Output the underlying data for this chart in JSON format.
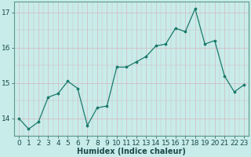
{
  "x": [
    0,
    1,
    2,
    3,
    4,
    5,
    6,
    7,
    8,
    9,
    10,
    11,
    12,
    13,
    14,
    15,
    16,
    17,
    18,
    19,
    20,
    21,
    22,
    23
  ],
  "y": [
    14.0,
    13.7,
    13.9,
    14.6,
    14.7,
    15.05,
    14.85,
    13.8,
    14.3,
    14.35,
    15.45,
    15.45,
    15.6,
    15.75,
    16.05,
    16.1,
    16.55,
    16.45,
    17.1,
    16.1,
    16.2,
    15.2,
    14.75,
    14.95
  ],
  "line_color": "#1a7a6a",
  "marker_color": "#1a7a6a",
  "bg_color": "#c8ecea",
  "grid_color_major": "#b8d4d2",
  "grid_color_minor": "#d8eeec",
  "xlabel": "Humidex (Indice chaleur)",
  "ylim": [
    13.5,
    17.3
  ],
  "yticks": [
    14,
    15,
    16,
    17
  ],
  "xticks": [
    0,
    1,
    2,
    3,
    4,
    5,
    6,
    7,
    8,
    9,
    10,
    11,
    12,
    13,
    14,
    15,
    16,
    17,
    18,
    19,
    20,
    21,
    22,
    23
  ],
  "label_fontsize": 7,
  "tick_fontsize": 6.5,
  "spine_color": "#5a9a8a"
}
